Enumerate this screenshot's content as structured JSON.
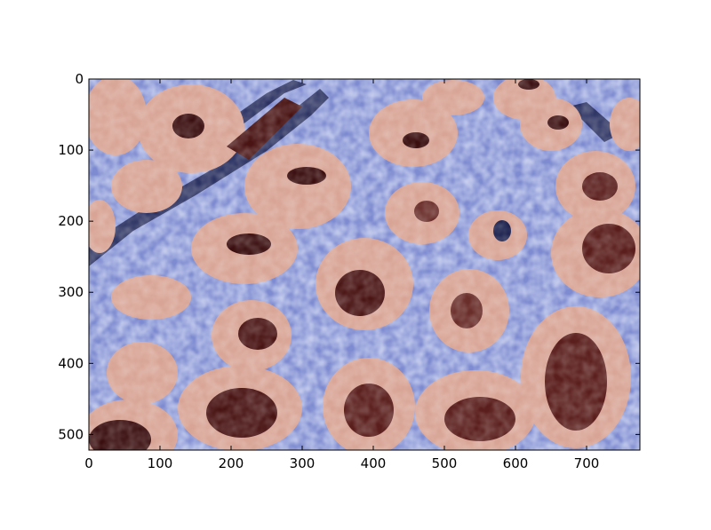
{
  "figure": {
    "image": {
      "description_icon": "histology-tissue-segmentation-image",
      "colors": {
        "stroma": "#7e8bd0",
        "stroma_dark": "#1e2450",
        "gland_epithelium": "#d8a495",
        "gland_lumen_dark": "#3b0f10"
      }
    },
    "x_axis": {
      "ticks": [
        "0",
        "100",
        "200",
        "300",
        "400",
        "500",
        "600",
        "700"
      ],
      "range": [
        0,
        775
      ]
    },
    "y_axis": {
      "ticks": [
        "0",
        "100",
        "200",
        "300",
        "400",
        "500"
      ],
      "range": [
        0,
        522
      ],
      "inverted": true
    }
  }
}
